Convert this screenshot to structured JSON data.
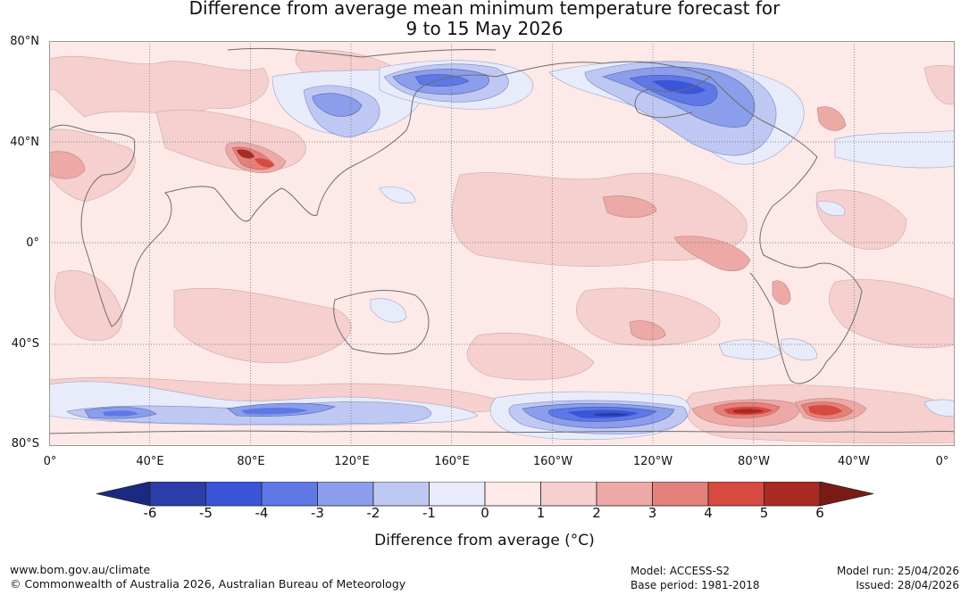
{
  "title": {
    "line1": "Difference from average mean minimum temperature forecast for",
    "line2": "9 to 15 May 2026"
  },
  "map": {
    "lat_labels": [
      "80°N",
      "40°N",
      "0°",
      "40°S",
      "80°S"
    ],
    "lon_labels": [
      "0°",
      "40°E",
      "80°E",
      "120°E",
      "160°E",
      "160°W",
      "120°W",
      "80°W",
      "40°W",
      "0°"
    ]
  },
  "colorbar": {
    "ticks": [
      "-6",
      "-5",
      "-4",
      "-3",
      "-2",
      "-1",
      "0",
      "1",
      "2",
      "3",
      "4",
      "5",
      "6"
    ],
    "colors": [
      "#2a3da8",
      "#3b55d9",
      "#5e78e6",
      "#8a9eec",
      "#bfc8f2",
      "#e8ebfa",
      "#fce9e8",
      "#f5d0cf",
      "#eca9a6",
      "#e3807a",
      "#d64a40",
      "#a82a22"
    ],
    "low_extend_color": "#1a2a80",
    "high_extend_color": "#7a1a15",
    "label": "Difference from average (°C)"
  },
  "footer": {
    "website": "www.bom.gov.au/climate",
    "copyright": "© Commonwealth of Australia 2026, Australian Bureau of Meteorology",
    "model": "Model: ACCESS-S2",
    "base_period": "Base period: 1981-2018",
    "model_run": "Model run: 25/04/2026",
    "issued": "Issued: 28/04/2026"
  }
}
